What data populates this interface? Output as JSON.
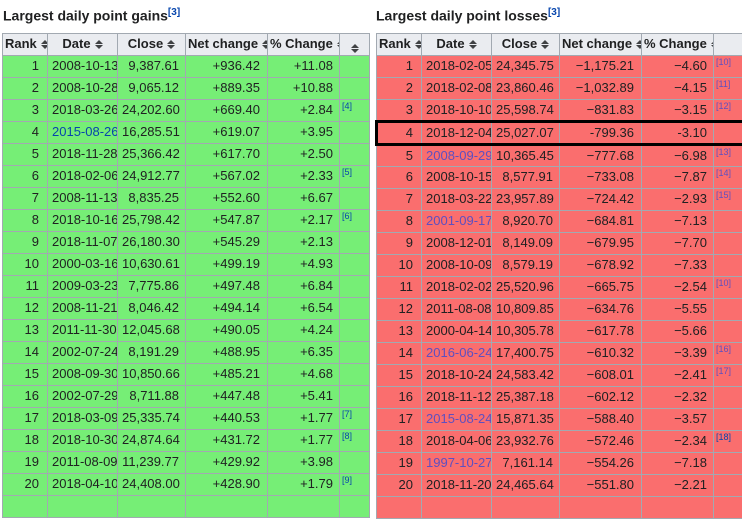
{
  "colors": {
    "gain_row": "#76ee76",
    "loss_row": "#fa6e6e",
    "header_bg": "#eaecf0",
    "cell_border": "#a2a9b1",
    "link_blue": "#0645ad",
    "link_purple": "#5e4fc0",
    "highlight_border": "#000000"
  },
  "tables": {
    "gains": {
      "title": "Largest daily point gains",
      "title_ref": "[3]",
      "ref_color_default": "blue",
      "columns": [
        {
          "label": "Rank",
          "sortable": true
        },
        {
          "label": "Date",
          "sortable": true
        },
        {
          "label": "Close",
          "sortable": true
        },
        {
          "label": "Net change",
          "sortable": true
        },
        {
          "label": "% Change",
          "sortable": true
        },
        {
          "label": "",
          "sortable": true
        }
      ],
      "rows": [
        {
          "rank": "1",
          "date": "2008-10-13",
          "close": "9,387.61",
          "net_change": "+936.42",
          "pct_change": "+11.08",
          "ref": ""
        },
        {
          "rank": "2",
          "date": "2008-10-28",
          "close": "9,065.12",
          "net_change": "+889.35",
          "pct_change": "+10.88",
          "ref": ""
        },
        {
          "rank": "3",
          "date": "2018-03-26",
          "close": "24,202.60",
          "net_change": "+669.40",
          "pct_change": "+2.84",
          "ref": "[4]"
        },
        {
          "rank": "4",
          "date": "2015-08-26",
          "close": "16,285.51",
          "net_change": "+619.07",
          "pct_change": "+3.95",
          "ref": "",
          "date_link": "blue"
        },
        {
          "rank": "5",
          "date": "2018-11-28",
          "close": "25,366.42",
          "net_change": "+617.70",
          "pct_change": "+2.50",
          "ref": ""
        },
        {
          "rank": "6",
          "date": "2018-02-06",
          "close": "24,912.77",
          "net_change": "+567.02",
          "pct_change": "+2.33",
          "ref": "[5]"
        },
        {
          "rank": "7",
          "date": "2008-11-13",
          "close": "8,835.25",
          "net_change": "+552.60",
          "pct_change": "+6.67",
          "ref": ""
        },
        {
          "rank": "8",
          "date": "2018-10-16",
          "close": "25,798.42",
          "net_change": "+547.87",
          "pct_change": "+2.17",
          "ref": "[6]"
        },
        {
          "rank": "9",
          "date": "2018-11-07",
          "close": "26,180.30",
          "net_change": "+545.29",
          "pct_change": "+2.13",
          "ref": ""
        },
        {
          "rank": "10",
          "date": "2000-03-16",
          "close": "10,630.61",
          "net_change": "+499.19",
          "pct_change": "+4.93",
          "ref": ""
        },
        {
          "rank": "11",
          "date": "2009-03-23",
          "close": "7,775.86",
          "net_change": "+497.48",
          "pct_change": "+6.84",
          "ref": ""
        },
        {
          "rank": "12",
          "date": "2008-11-21",
          "close": "8,046.42",
          "net_change": "+494.14",
          "pct_change": "+6.54",
          "ref": ""
        },
        {
          "rank": "13",
          "date": "2011-11-30",
          "close": "12,045.68",
          "net_change": "+490.05",
          "pct_change": "+4.24",
          "ref": ""
        },
        {
          "rank": "14",
          "date": "2002-07-24",
          "close": "8,191.29",
          "net_change": "+488.95",
          "pct_change": "+6.35",
          "ref": ""
        },
        {
          "rank": "15",
          "date": "2008-09-30",
          "close": "10,850.66",
          "net_change": "+485.21",
          "pct_change": "+4.68",
          "ref": ""
        },
        {
          "rank": "16",
          "date": "2002-07-29",
          "close": "8,711.88",
          "net_change": "+447.48",
          "pct_change": "+5.41",
          "ref": ""
        },
        {
          "rank": "17",
          "date": "2018-03-09",
          "close": "25,335.74",
          "net_change": "+440.53",
          "pct_change": "+1.77",
          "ref": "[7]"
        },
        {
          "rank": "18",
          "date": "2018-10-30",
          "close": "24,874.64",
          "net_change": "+431.72",
          "pct_change": "+1.77",
          "ref": "[8]"
        },
        {
          "rank": "19",
          "date": "2011-08-09",
          "close": "11,239.77",
          "net_change": "+429.92",
          "pct_change": "+3.98",
          "ref": ""
        },
        {
          "rank": "20",
          "date": "2018-04-10",
          "close": "24,408.00",
          "net_change": "+428.90",
          "pct_change": "+1.79",
          "ref": "[9]"
        }
      ]
    },
    "losses": {
      "title": "Largest daily point losses",
      "title_ref": "[3]",
      "ref_color_default": "purple",
      "columns": [
        {
          "label": "Rank",
          "sortable": true
        },
        {
          "label": "Date",
          "sortable": true
        },
        {
          "label": "Close",
          "sortable": true
        },
        {
          "label": "Net change",
          "sortable": true
        },
        {
          "label": "% Change",
          "sortable": true
        },
        {
          "label": "",
          "sortable": false
        }
      ],
      "rows": [
        {
          "rank": "1",
          "date": "2018-02-05",
          "close": "24,345.75",
          "net_change": "−1,175.21",
          "pct_change": "−4.60",
          "ref": "[10]"
        },
        {
          "rank": "2",
          "date": "2018-02-08",
          "close": "23,860.46",
          "net_change": "−1,032.89",
          "pct_change": "−4.15",
          "ref": "[11]"
        },
        {
          "rank": "3",
          "date": "2018-10-10",
          "close": "25,598.74",
          "net_change": "−831.83",
          "pct_change": "−3.15",
          "ref": "[12]"
        },
        {
          "rank": "4",
          "date": "2018-12-04",
          "close": "25,027.07",
          "net_change": "-799.36",
          "pct_change": "-3.10",
          "ref": "",
          "highlight": true
        },
        {
          "rank": "5",
          "date": "2008-09-29",
          "close": "10,365.45",
          "net_change": "−777.68",
          "pct_change": "−6.98",
          "ref": "[13]",
          "date_link": "purple"
        },
        {
          "rank": "6",
          "date": "2008-10-15",
          "close": "8,577.91",
          "net_change": "−733.08",
          "pct_change": "−7.87",
          "ref": "[14]"
        },
        {
          "rank": "7",
          "date": "2018-03-22",
          "close": "23,957.89",
          "net_change": "−724.42",
          "pct_change": "−2.93",
          "ref": "[15]"
        },
        {
          "rank": "8",
          "date": "2001-09-17",
          "close": "8,920.70",
          "net_change": "−684.81",
          "pct_change": "−7.13",
          "ref": "",
          "date_link": "purple"
        },
        {
          "rank": "9",
          "date": "2008-12-01",
          "close": "8,149.09",
          "net_change": "−679.95",
          "pct_change": "−7.70",
          "ref": ""
        },
        {
          "rank": "10",
          "date": "2008-10-09",
          "close": "8,579.19",
          "net_change": "−678.92",
          "pct_change": "−7.33",
          "ref": ""
        },
        {
          "rank": "11",
          "date": "2018-02-02",
          "close": "25,520.96",
          "net_change": "−665.75",
          "pct_change": "−2.54",
          "ref": "[10]"
        },
        {
          "rank": "12",
          "date": "2011-08-08",
          "close": "10,809.85",
          "net_change": "−634.76",
          "pct_change": "−5.55",
          "ref": ""
        },
        {
          "rank": "13",
          "date": "2000-04-14",
          "close": "10,305.78",
          "net_change": "−617.78",
          "pct_change": "−5.66",
          "ref": ""
        },
        {
          "rank": "14",
          "date": "2016-06-24",
          "close": "17,400.75",
          "net_change": "−610.32",
          "pct_change": "−3.39",
          "ref": "[16]",
          "date_link": "purple"
        },
        {
          "rank": "15",
          "date": "2018-10-24",
          "close": "24,583.42",
          "net_change": "−608.01",
          "pct_change": "−2.41",
          "ref": "[17]"
        },
        {
          "rank": "16",
          "date": "2018-11-12",
          "close": "25,387.18",
          "net_change": "−602.12",
          "pct_change": "−2.32",
          "ref": ""
        },
        {
          "rank": "17",
          "date": "2015-08-24",
          "close": "15,871.35",
          "net_change": "−588.40",
          "pct_change": "−3.57",
          "ref": "",
          "date_link": "purple"
        },
        {
          "rank": "18",
          "date": "2018-04-06",
          "close": "23,932.76",
          "net_change": "−572.46",
          "pct_change": "−2.34",
          "ref": "[18]",
          "ref_color": "blue"
        },
        {
          "rank": "19",
          "date": "1997-10-27",
          "close": "7,161.14",
          "net_change": "−554.26",
          "pct_change": "−7.18",
          "ref": "",
          "date_link": "purple"
        },
        {
          "rank": "20",
          "date": "2018-11-20",
          "close": "24,465.64",
          "net_change": "−551.80",
          "pct_change": "−2.21",
          "ref": ""
        }
      ]
    }
  }
}
